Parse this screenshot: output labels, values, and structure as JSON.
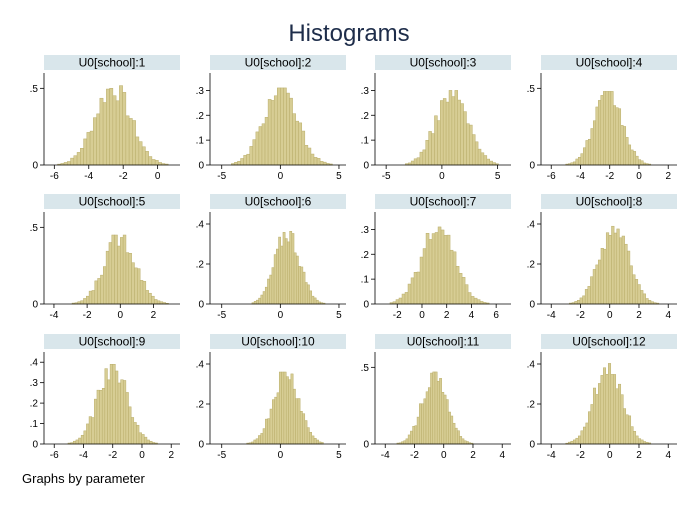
{
  "chart_data": {
    "type": "bar",
    "title": "Histograms",
    "note": "Graphs by parameter",
    "bar_color": "#d7cd94",
    "bar_edge": "#b9ad6a",
    "strip_color": "#d9e6eb",
    "title_color": "#1e2d4a",
    "panels": [
      {
        "label": "U0[school]:1",
        "xlim": [
          -6.6,
          1.3
        ],
        "xticks": [
          -6,
          -4,
          -2,
          0
        ],
        "ylim": [
          0,
          0.6
        ],
        "yticks": [
          0,
          0.5
        ],
        "ytick_labels": [
          "0",
          ".5"
        ],
        "mean": -2.6,
        "sd": 1.05,
        "peak": 0.52
      },
      {
        "label": "U0[school]:2",
        "xlim": [
          -6.0,
          5.6
        ],
        "xticks": [
          -5,
          0,
          5
        ],
        "ylim": [
          0,
          0.37
        ],
        "yticks": [
          0,
          0.1,
          0.2,
          0.3
        ],
        "ytick_labels": [
          "0",
          ".1",
          ".2",
          ".3"
        ],
        "mean": 0.0,
        "sd": 1.45,
        "peak": 0.31
      },
      {
        "label": "U0[school]:3",
        "xlim": [
          -6.0,
          6.2
        ],
        "xticks": [
          -5,
          0,
          5
        ],
        "ylim": [
          0,
          0.37
        ],
        "yticks": [
          0,
          0.1,
          0.2,
          0.3
        ],
        "ytick_labels": [
          "0",
          ".1",
          ".2",
          ".3"
        ],
        "mean": 0.9,
        "sd": 1.45,
        "peak": 0.3
      },
      {
        "label": "U0[school]:4",
        "xlim": [
          -6.7,
          2.6
        ],
        "xticks": [
          -6,
          -4,
          -2,
          0,
          2
        ],
        "ylim": [
          0,
          0.6
        ],
        "yticks": [
          0,
          0.5
        ],
        "ytick_labels": [
          "0",
          ".5"
        ],
        "mean": -2.1,
        "sd": 0.95,
        "peak": 0.48
      },
      {
        "label": "U0[school]:5",
        "xlim": [
          -4.6,
          3.6
        ],
        "xticks": [
          -4,
          -2,
          0,
          2
        ],
        "ylim": [
          0,
          0.6
        ],
        "yticks": [
          0,
          0.5
        ],
        "ytick_labels": [
          "0",
          ".5"
        ],
        "mean": 0.0,
        "sd": 0.95,
        "peak": 0.45
      },
      {
        "label": "U0[school]:6",
        "xlim": [
          -6.0,
          5.6
        ],
        "xticks": [
          -5,
          0,
          5
        ],
        "ylim": [
          0,
          0.46
        ],
        "yticks": [
          0,
          0.2,
          0.4
        ],
        "ytick_labels": [
          "0",
          ".2",
          ".4"
        ],
        "mean": 0.6,
        "sd": 1.05,
        "peak": 0.37
      },
      {
        "label": "U0[school]:7",
        "xlim": [
          -3.8,
          7.2
        ],
        "xticks": [
          -2,
          0,
          2,
          4,
          6
        ],
        "ylim": [
          0,
          0.37
        ],
        "yticks": [
          0,
          0.1,
          0.2,
          0.3
        ],
        "ytick_labels": [
          "0",
          ".1",
          ".2",
          ".3"
        ],
        "mean": 1.3,
        "sd": 1.35,
        "peak": 0.31
      },
      {
        "label": "U0[school]:8",
        "xlim": [
          -4.7,
          4.6
        ],
        "xticks": [
          -4,
          -2,
          0,
          2,
          4
        ],
        "ylim": [
          0,
          0.46
        ],
        "yticks": [
          0,
          0.2,
          0.4
        ],
        "ytick_labels": [
          "0",
          ".2",
          ".4"
        ],
        "mean": 0.3,
        "sd": 1.0,
        "peak": 0.4
      },
      {
        "label": "U0[school]:9",
        "xlim": [
          -6.7,
          2.6
        ],
        "xticks": [
          -6,
          -4,
          -2,
          0,
          2
        ],
        "ylim": [
          0,
          0.45
        ],
        "yticks": [
          0,
          0.1,
          0.2,
          0.3,
          0.4
        ],
        "ytick_labels": [
          "0",
          ".1",
          ".2",
          ".3",
          ".4"
        ],
        "mean": -2.0,
        "sd": 1.0,
        "peak": 0.39
      },
      {
        "label": "U0[school]:10",
        "xlim": [
          -6.0,
          5.6
        ],
        "xticks": [
          -5,
          0,
          5
        ],
        "ylim": [
          0,
          0.46
        ],
        "yticks": [
          0,
          0.2,
          0.4
        ],
        "ytick_labels": [
          "0",
          ".2",
          ".4"
        ],
        "mean": 0.5,
        "sd": 1.1,
        "peak": 0.36
      },
      {
        "label": "U0[school]:11",
        "xlim": [
          -4.7,
          4.6
        ],
        "xticks": [
          -4,
          -2,
          0,
          2,
          4
        ],
        "ylim": [
          0,
          0.6
        ],
        "yticks": [
          0,
          0.5
        ],
        "ytick_labels": [
          "0",
          ".5"
        ],
        "mean": -0.6,
        "sd": 0.85,
        "peak": 0.47
      },
      {
        "label": "U0[school]:12",
        "xlim": [
          -4.7,
          4.6
        ],
        "xticks": [
          -4,
          -2,
          0,
          2,
          4
        ],
        "ylim": [
          0,
          0.46
        ],
        "yticks": [
          0,
          0.2,
          0.4
        ],
        "ytick_labels": [
          "0",
          ".2",
          ".4"
        ],
        "mean": -0.1,
        "sd": 0.95,
        "peak": 0.41
      }
    ]
  }
}
